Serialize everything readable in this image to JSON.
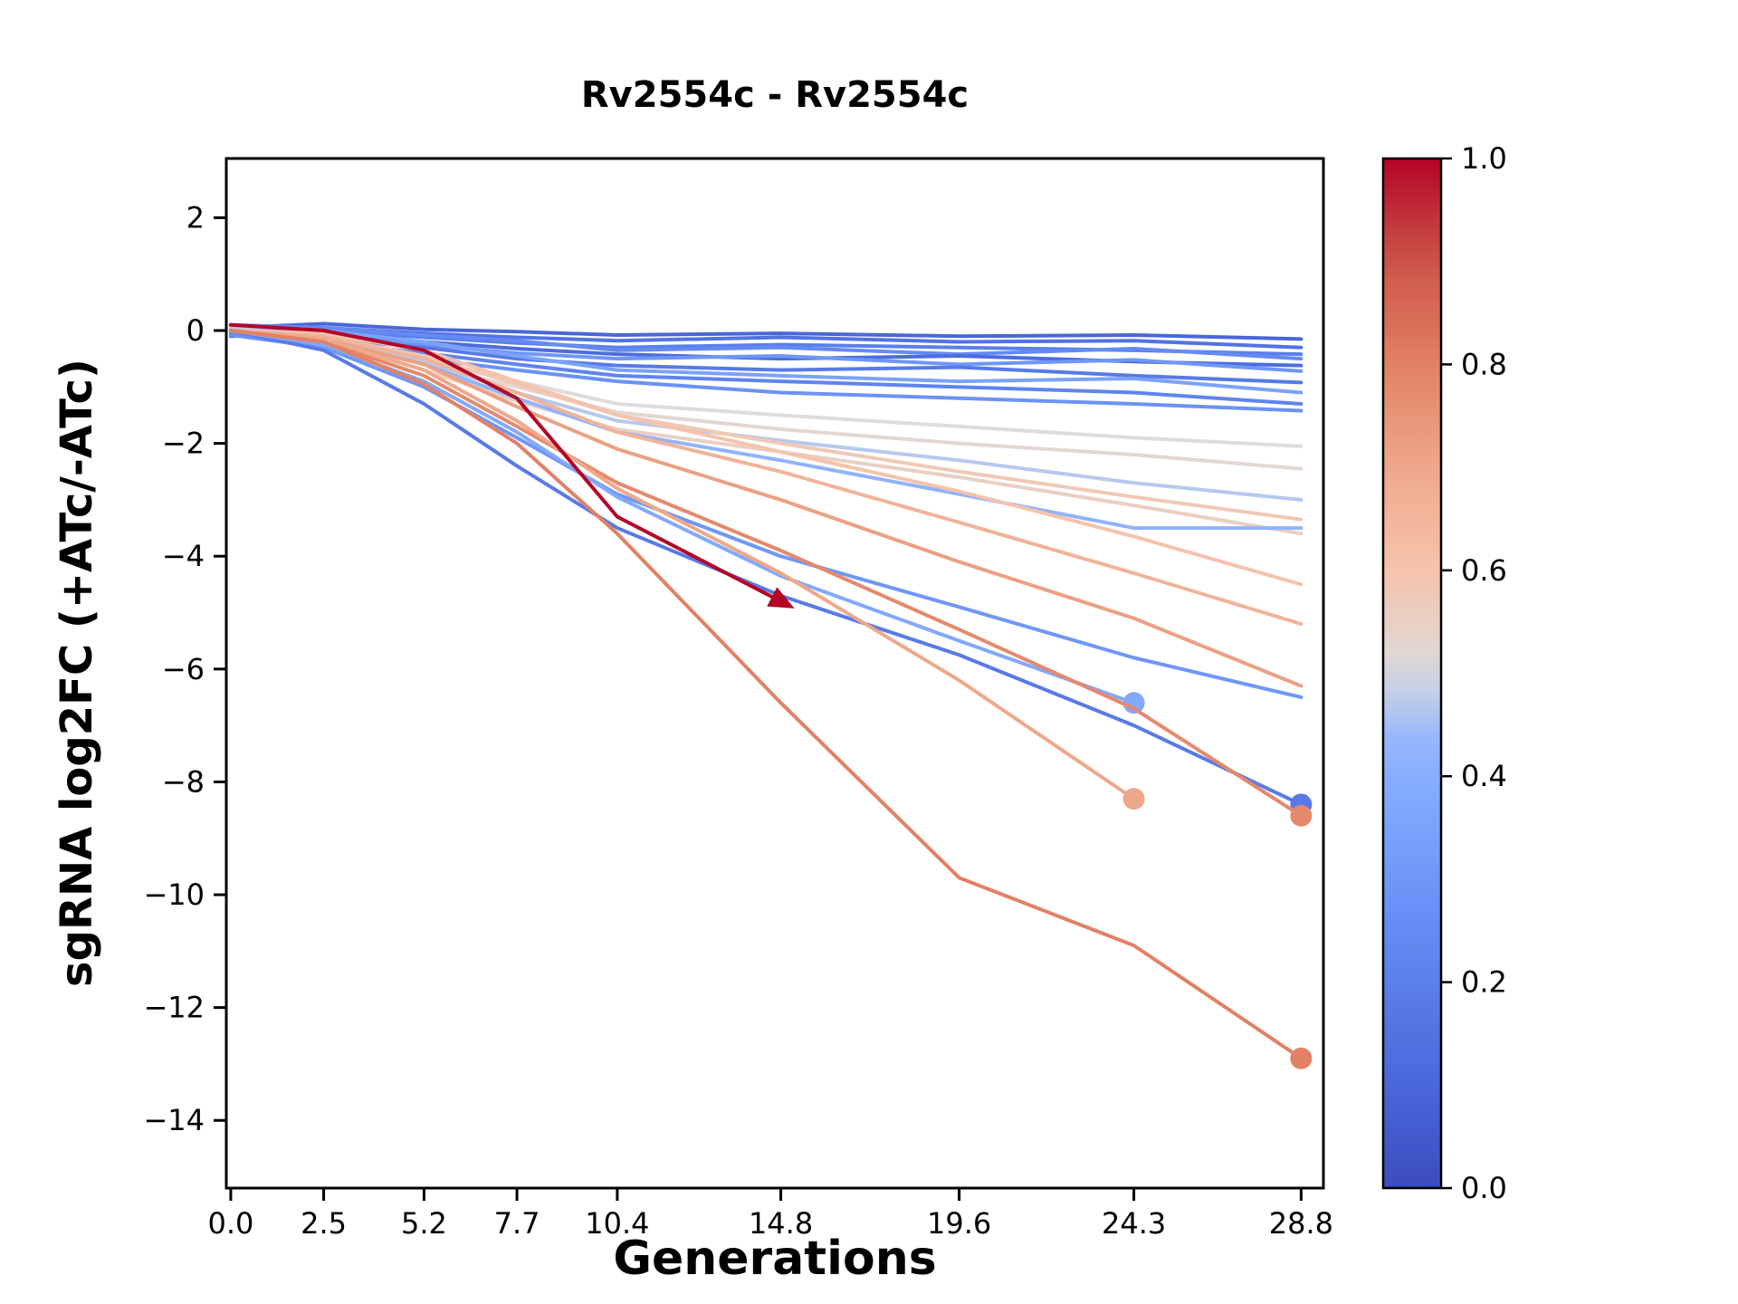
{
  "chart_data": {
    "type": "line",
    "title": "Rv2554c - Rv2554c",
    "xlabel": "Generations",
    "ylabel": "sgRNA log2FC (+ATc/-ATc)",
    "x": [
      0.0,
      2.5,
      5.2,
      7.7,
      10.4,
      14.8,
      19.6,
      24.3,
      28.8
    ],
    "xtick_labels": [
      "0.0",
      "2.5",
      "5.2",
      "7.7",
      "10.4",
      "14.8",
      "19.6",
      "24.3",
      "28.8"
    ],
    "yticks": [
      2,
      0,
      -2,
      -4,
      -6,
      -8,
      -10,
      -12,
      -14
    ],
    "xlim": [
      -0.12,
      29.4
    ],
    "ylim": [
      -15.2,
      3.05
    ],
    "grid": false,
    "legend": "none",
    "colormap": "coolwarm",
    "colorbar": {
      "min": 0.0,
      "max": 1.0,
      "ticks": [
        0.0,
        0.2,
        0.4,
        0.6,
        0.8,
        1.0
      ]
    },
    "series": [
      {
        "c": 0.1,
        "y": [
          0.05,
          0.12,
          0.02,
          -0.02,
          -0.08,
          -0.05,
          -0.1,
          -0.08,
          -0.15
        ]
      },
      {
        "c": 0.15,
        "y": [
          0.0,
          0.05,
          -0.05,
          -0.12,
          -0.18,
          -0.12,
          -0.2,
          -0.18,
          -0.3
        ]
      },
      {
        "c": 0.2,
        "y": [
          -0.05,
          0.0,
          -0.12,
          -0.22,
          -0.3,
          -0.25,
          -0.3,
          -0.35,
          -0.42
        ]
      },
      {
        "c": 0.25,
        "y": [
          0.1,
          0.05,
          -0.08,
          -0.18,
          -0.35,
          -0.3,
          -0.42,
          -0.32,
          -0.5
        ]
      },
      {
        "c": 0.12,
        "y": [
          -0.1,
          -0.05,
          -0.2,
          -0.32,
          -0.42,
          -0.5,
          -0.45,
          -0.55,
          -0.62
        ]
      },
      {
        "c": 0.3,
        "y": [
          0.0,
          -0.1,
          -0.25,
          -0.4,
          -0.5,
          -0.45,
          -0.6,
          -0.52,
          -0.72
        ]
      },
      {
        "c": 0.18,
        "y": [
          -0.05,
          -0.15,
          -0.3,
          -0.5,
          -0.62,
          -0.7,
          -0.65,
          -0.8,
          -0.92
        ]
      },
      {
        "c": 0.35,
        "y": [
          0.05,
          0.0,
          -0.2,
          -0.45,
          -0.7,
          -0.8,
          -0.9,
          -0.85,
          -1.1
        ]
      },
      {
        "c": 0.22,
        "y": [
          0.0,
          -0.2,
          -0.4,
          -0.6,
          -0.8,
          -0.9,
          -1.0,
          -1.1,
          -1.3
        ]
      },
      {
        "c": 0.28,
        "y": [
          -0.08,
          -0.3,
          -0.5,
          -0.7,
          -0.9,
          -1.1,
          -1.2,
          -1.3,
          -1.42
        ]
      },
      {
        "c": 0.5,
        "y": [
          0.0,
          -0.1,
          -0.5,
          -0.9,
          -1.3,
          -1.5,
          -1.7,
          -1.9,
          -2.05
        ]
      },
      {
        "c": 0.52,
        "y": [
          0.0,
          -0.15,
          -0.6,
          -1.0,
          -1.45,
          -1.75,
          -2.0,
          -2.2,
          -2.45
        ]
      },
      {
        "c": 0.47,
        "y": [
          0.05,
          -0.1,
          -0.55,
          -1.1,
          -1.6,
          -1.95,
          -2.3,
          -2.7,
          -3.0
        ]
      },
      {
        "c": 0.55,
        "y": [
          0.0,
          -0.2,
          -0.7,
          -1.25,
          -1.75,
          -2.15,
          -2.6,
          -3.1,
          -3.6
        ]
      },
      {
        "c": 0.42,
        "y": [
          0.0,
          -0.15,
          -0.6,
          -1.2,
          -1.8,
          -2.3,
          -2.9,
          -3.5,
          -3.5
        ]
      },
      {
        "c": 0.58,
        "y": [
          0.0,
          -0.1,
          -0.45,
          -0.95,
          -1.5,
          -2.0,
          -2.5,
          -2.95,
          -3.35
        ]
      },
      {
        "c": 0.3,
        "y": [
          0.0,
          -0.3,
          -1.0,
          -1.9,
          -2.9,
          -4.0,
          -4.9,
          -5.8,
          -6.5
        ]
      },
      {
        "c": 0.18,
        "y": [
          0.0,
          -0.35,
          -1.3,
          -2.4,
          -3.5,
          -4.7,
          -5.75,
          -7.0,
          -8.4
        ],
        "marker": "circle"
      },
      {
        "c": 0.38,
        "y": [
          0.0,
          -0.25,
          -0.9,
          -1.8,
          -2.95,
          -4.35,
          -5.5,
          -6.6
        ],
        "marker": "circle"
      },
      {
        "c": 0.6,
        "y": [
          0.0,
          -0.05,
          -0.35,
          -0.9,
          -1.5,
          -2.15,
          -2.85,
          -3.65,
          -4.5
        ]
      },
      {
        "c": 0.66,
        "y": [
          0.0,
          -0.1,
          -0.5,
          -1.1,
          -1.8,
          -2.5,
          -3.4,
          -4.3,
          -5.2
        ]
      },
      {
        "c": 0.72,
        "y": [
          0.0,
          -0.15,
          -0.6,
          -1.35,
          -2.1,
          -3.0,
          -4.1,
          -5.1,
          -6.3
        ]
      },
      {
        "c": 0.78,
        "y": [
          0.0,
          -0.2,
          -0.8,
          -1.7,
          -2.7,
          -3.9,
          -5.3,
          -6.7,
          -8.6
        ],
        "marker": "circle"
      },
      {
        "c": 0.7,
        "y": [
          0.0,
          -0.15,
          -0.7,
          -1.6,
          -2.8,
          -4.3,
          -6.2,
          -8.3
        ],
        "marker": "circle"
      },
      {
        "c": 0.8,
        "y": [
          0.0,
          -0.2,
          -0.95,
          -2.0,
          -3.6,
          -6.6,
          -9.7,
          -10.9,
          -12.9
        ],
        "marker": "circle"
      },
      {
        "c": 1.0,
        "y": [
          0.1,
          0.0,
          -0.35,
          -1.2,
          -3.3,
          -4.8
        ],
        "marker": "triangle"
      }
    ]
  }
}
